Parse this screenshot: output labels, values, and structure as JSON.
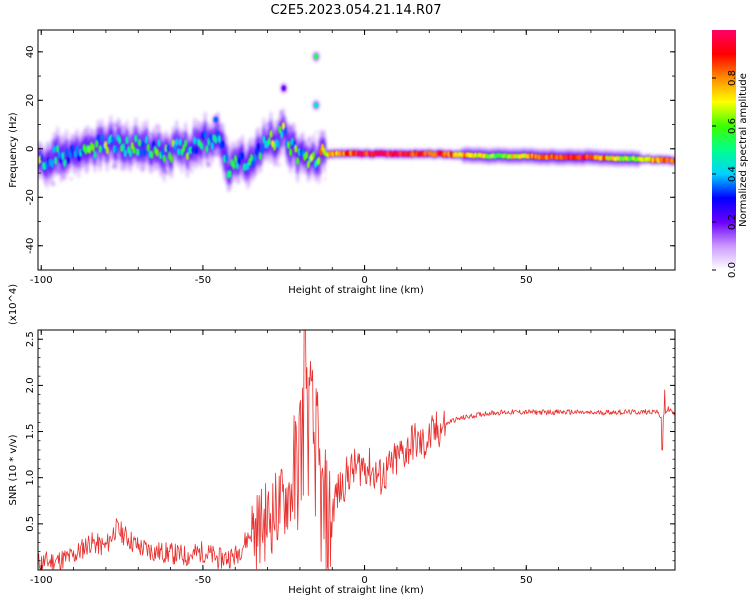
{
  "figure_title": "C2E5.2023.054.21.14.R07",
  "chart_data": [
    {
      "type": "heatmap",
      "xlabel": "Height of straight line (km)",
      "ylabel": "Frequency (Hz)",
      "xlim": [
        -101,
        96
      ],
      "ylim": [
        -50,
        49
      ],
      "xticks": [
        -100,
        -50,
        0,
        50
      ],
      "yticks": [
        -40,
        -20,
        0,
        20,
        40
      ],
      "colorbar": {
        "label": "Normalized spectral amplitude",
        "range": [
          0,
          1
        ],
        "ticks": [
          0.0,
          0.2,
          0.4,
          0.6,
          0.8
        ],
        "colormap": [
          "#ffffff",
          "#cc99ff",
          "#6a00ff",
          "#0000ff",
          "#00d2ff",
          "#00ff8c",
          "#3cff00",
          "#ffff00",
          "#ff8c00",
          "#ff0000",
          "#ff0066"
        ]
      },
      "ridge": [
        {
          "x": -100,
          "f": -5,
          "a": 0.35
        },
        {
          "x": -95,
          "f": -3,
          "a": 0.45
        },
        {
          "x": -90,
          "f": -2,
          "a": 0.45
        },
        {
          "x": -85,
          "f": 0,
          "a": 0.5
        },
        {
          "x": -80,
          "f": 2,
          "a": 0.55
        },
        {
          "x": -75,
          "f": 1,
          "a": 0.5
        },
        {
          "x": -70,
          "f": 2,
          "a": 0.5
        },
        {
          "x": -65,
          "f": 0,
          "a": 0.5
        },
        {
          "x": -60,
          "f": -1,
          "a": 0.55
        },
        {
          "x": -55,
          "f": 0,
          "a": 0.5
        },
        {
          "x": -50,
          "f": 2,
          "a": 0.45
        },
        {
          "x": -45,
          "f": 5,
          "a": 0.45
        },
        {
          "x": -42,
          "f": -8,
          "a": 0.5
        },
        {
          "x": -35,
          "f": -5,
          "a": 0.45
        },
        {
          "x": -30,
          "f": 3,
          "a": 0.55
        },
        {
          "x": -25,
          "f": 6,
          "a": 0.55
        },
        {
          "x": -20,
          "f": -5,
          "a": 0.5
        },
        {
          "x": -15,
          "f": -3,
          "a": 0.6
        },
        {
          "x": -10,
          "f": -2,
          "a": 0.8
        },
        {
          "x": 0,
          "f": -2,
          "a": 0.95
        },
        {
          "x": 10,
          "f": -2,
          "a": 0.95
        },
        {
          "x": 20,
          "f": -2,
          "a": 0.9
        },
        {
          "x": 30,
          "f": -2.5,
          "a": 0.8
        },
        {
          "x": 40,
          "f": -3,
          "a": 0.6
        },
        {
          "x": 50,
          "f": -3,
          "a": 0.75
        },
        {
          "x": 60,
          "f": -3.5,
          "a": 0.9
        },
        {
          "x": 70,
          "f": -3.5,
          "a": 0.9
        },
        {
          "x": 80,
          "f": -4,
          "a": 0.6
        },
        {
          "x": 90,
          "f": -4.5,
          "a": 0.8
        },
        {
          "x": 96,
          "f": -5,
          "a": 0.9
        }
      ],
      "harmonics": [
        {
          "x": -15,
          "f": 38,
          "a": 0.55
        },
        {
          "x": -15,
          "f": 18,
          "a": 0.45
        },
        {
          "x": -25,
          "f": 25,
          "a": 0.2
        },
        {
          "x": -46,
          "f": 12,
          "a": 0.35
        }
      ]
    },
    {
      "type": "line",
      "xlabel": "Height of straight line (km)",
      "ylabel": "SNR (10 * v/v)",
      "y_multiplier": "(x10^4)",
      "xlim": [
        -101,
        96
      ],
      "ylim": [
        0,
        2.6
      ],
      "xticks": [
        -100,
        -50,
        0,
        50
      ],
      "yticks": [
        0.5,
        1.0,
        1.5,
        2.0,
        2.5
      ],
      "line_color": "#e8302e",
      "series": [
        {
          "x": [
            -101,
            -95,
            -90,
            -85,
            -80,
            -77,
            -75,
            -70,
            -65,
            -60,
            -55,
            -50,
            -45,
            -40,
            -35,
            -30,
            -26,
            -22,
            -19,
            -17,
            -15,
            -13,
            -11,
            -9,
            -7,
            -5,
            -3,
            0,
            3,
            5,
            8,
            11,
            13,
            15,
            18,
            22,
            27,
            32,
            38,
            45,
            50,
            55,
            60,
            65,
            70,
            75,
            80,
            85,
            90,
            92,
            94,
            96
          ],
          "y": [
            0.08,
            0.1,
            0.15,
            0.3,
            0.25,
            0.45,
            0.4,
            0.25,
            0.2,
            0.18,
            0.15,
            0.2,
            0.12,
            0.15,
            0.4,
            0.55,
            0.7,
            0.9,
            1.5,
            1.6,
            1.3,
            0.6,
            0.45,
            0.8,
            0.9,
            1.05,
            1.1,
            1.15,
            1.05,
            1.0,
            1.1,
            1.25,
            1.3,
            1.4,
            1.35,
            1.5,
            1.62,
            1.66,
            1.7,
            1.71,
            1.71,
            1.71,
            1.71,
            1.71,
            1.7,
            1.71,
            1.71,
            1.71,
            1.72,
            1.65,
            1.75,
            1.68
          ]
        }
      ]
    }
  ]
}
